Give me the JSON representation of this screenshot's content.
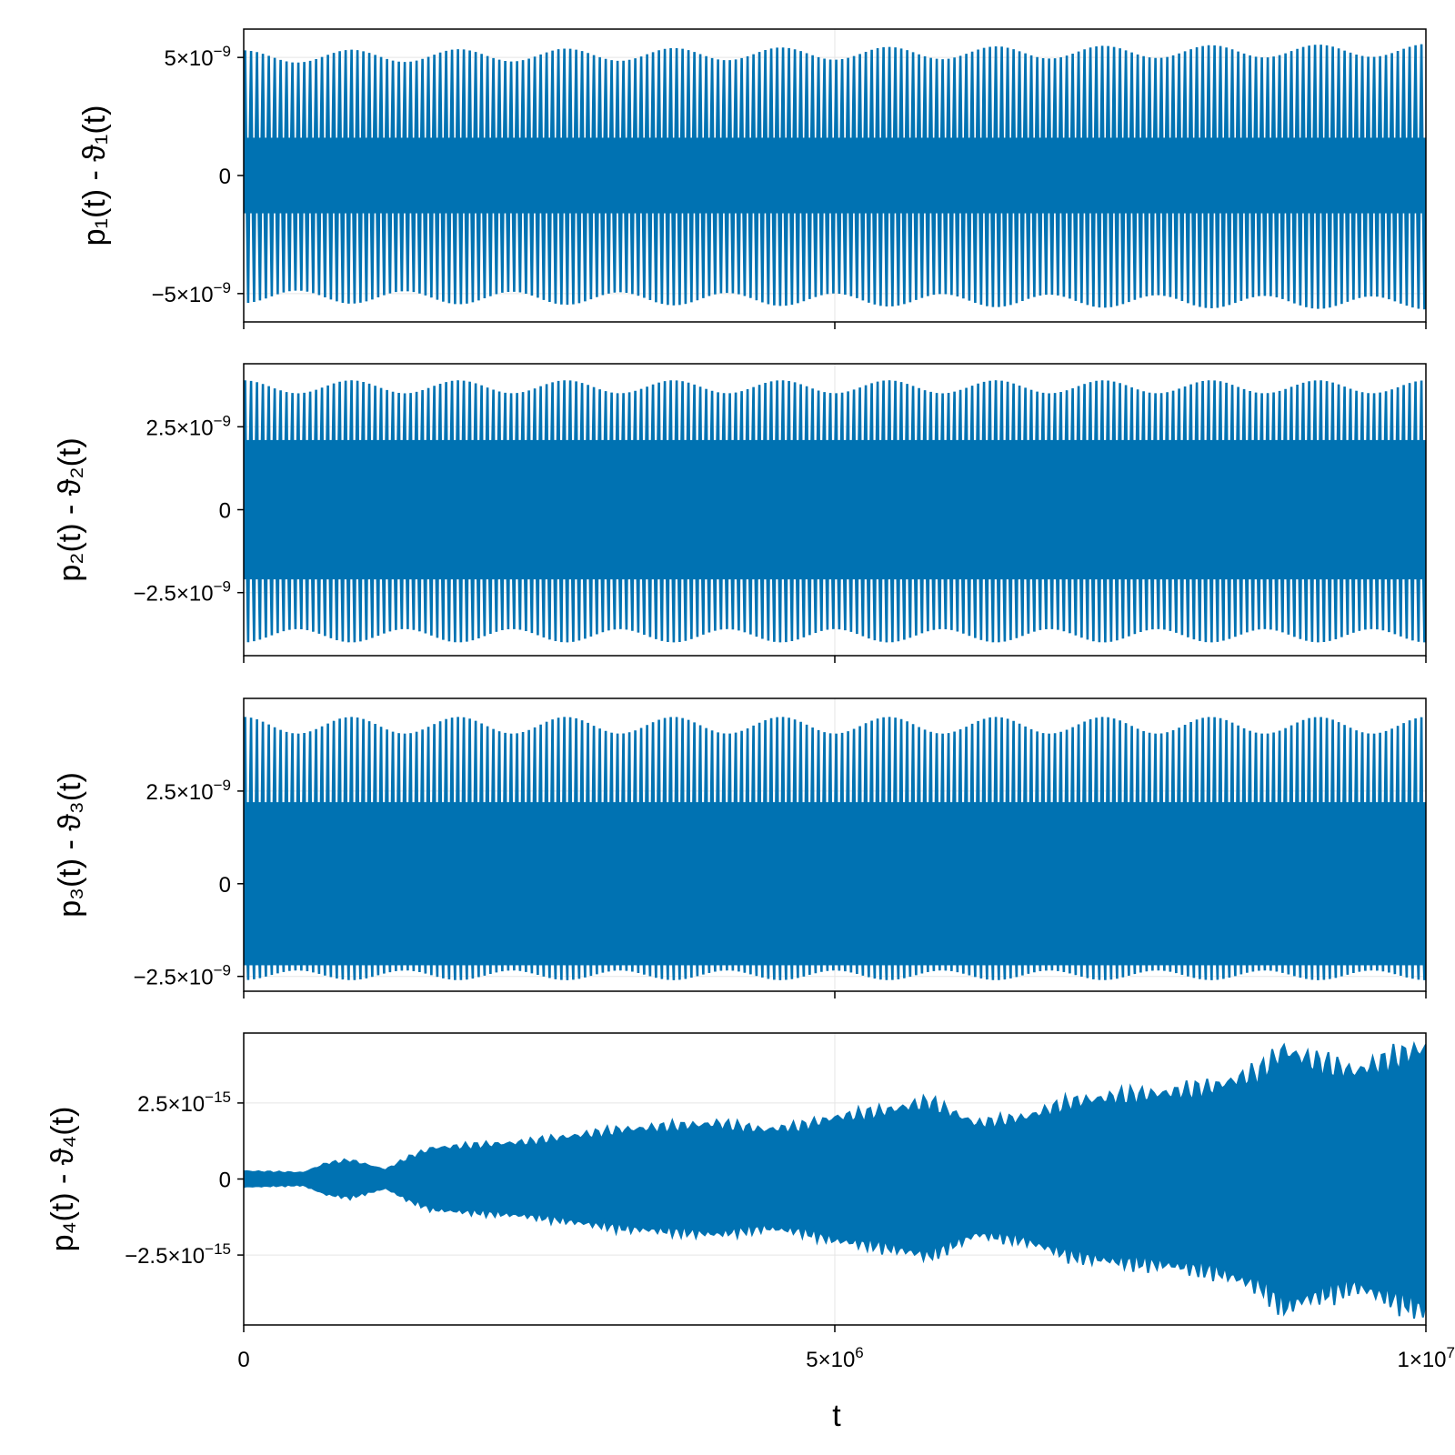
{
  "figure": {
    "xlabel": "t",
    "x_ticks": [
      {
        "value": 0,
        "label": "0",
        "sup": ""
      },
      {
        "value": 5000000,
        "label": "5×10",
        "sup": "6"
      },
      {
        "value": 10000000,
        "label": "1×10",
        "sup": "7"
      }
    ]
  },
  "colors": {
    "series": "#0072b2",
    "grid": "#e5e5e5",
    "axes": "#000000"
  },
  "chart_data": [
    {
      "type": "line",
      "ylabel": "p₁(t) - ϑ₁(t)",
      "xlim": [
        0,
        10000000
      ],
      "ylim": [
        -6.2e-09,
        6.2e-09
      ],
      "y_ticks": [
        {
          "value": 5e-09,
          "label": "5×10",
          "sup": "−9"
        },
        {
          "value": 0,
          "label": "0",
          "sup": ""
        },
        {
          "value": -5e-09,
          "label": "−5×10",
          "sup": "−9"
        }
      ],
      "series": [
        {
          "envelope_outer_max": 5.3e-09,
          "envelope_outer_min": -5.4e-09,
          "inner_band": 1.6e-09,
          "modulation_periods": 11,
          "carrier_cycles": 200
        }
      ]
    },
    {
      "type": "line",
      "ylabel": "p₂(t) - ϑ₂(t)",
      "xlim": [
        0,
        10000000
      ],
      "ylim": [
        -4.4e-09,
        4.4e-09
      ],
      "y_ticks": [
        {
          "value": 2.5e-09,
          "label": "2.5×10",
          "sup": "−9"
        },
        {
          "value": 0,
          "label": "0",
          "sup": ""
        },
        {
          "value": -2.5e-09,
          "label": "−2.5×10",
          "sup": "−9"
        }
      ],
      "series": [
        {
          "envelope_outer_max": 3.9e-09,
          "envelope_outer_min": -4e-09,
          "inner_band": 2.1e-09,
          "modulation_periods": 11,
          "carrier_cycles": 200
        }
      ]
    },
    {
      "type": "line",
      "ylabel": "p₃(t) - ϑ₃(t)",
      "xlim": [
        0,
        10000000
      ],
      "ylim": [
        -2.9e-09,
        5e-09
      ],
      "y_ticks": [
        {
          "value": 2.5e-09,
          "label": "2.5×10",
          "sup": "−9"
        },
        {
          "value": 0,
          "label": "0",
          "sup": ""
        },
        {
          "value": -2.5e-09,
          "label": "−2.5×10",
          "sup": "−9"
        }
      ],
      "series": [
        {
          "envelope_outer_max": 4.5e-09,
          "envelope_outer_min": -2.6e-09,
          "inner_band": 2.2e-09,
          "modulation_periods": 11,
          "carrier_cycles": 200
        }
      ]
    },
    {
      "type": "line",
      "ylabel": "p₄(t) - ϑ₄(t)",
      "xlim": [
        0,
        10000000
      ],
      "ylim": [
        -4.8e-15,
        4.8e-15
      ],
      "y_ticks": [
        {
          "value": 2.5e-15,
          "label": "2.5×10",
          "sup": "−15"
        },
        {
          "value": 0,
          "label": "0",
          "sup": ""
        },
        {
          "value": -2.5e-15,
          "label": "−2.5×10",
          "sup": "−15"
        }
      ],
      "series": [
        {
          "envelope_x": [
            0,
            500000,
            700000,
            900000,
            1200000,
            1400000,
            1600000,
            2000000,
            2400000,
            2800000,
            3200000,
            3600000,
            4000000,
            4400000,
            4700000,
            5000000,
            5400000,
            5800000,
            6200000,
            6600000,
            7000000,
            7400000,
            7800000,
            8200000,
            8600000,
            8800000,
            9000000,
            9400000,
            9700000,
            10000000
          ],
          "envelope_y": [
            2.5e-16,
            2e-16,
            5e-16,
            6e-16,
            3e-16,
            7e-16,
            1e-15,
            1.1e-15,
            1.2e-15,
            1.4e-15,
            1.6e-15,
            1.7e-15,
            1.8e-15,
            1.6e-15,
            1.7e-15,
            2e-15,
            2.2e-15,
            2.5e-15,
            1.8e-15,
            2e-15,
            2.5e-15,
            2.7e-15,
            2.8e-15,
            3e-15,
            3.5e-15,
            4.2e-15,
            3.9e-15,
            3.5e-15,
            3.9e-15,
            4.3e-15
          ]
        }
      ]
    }
  ]
}
